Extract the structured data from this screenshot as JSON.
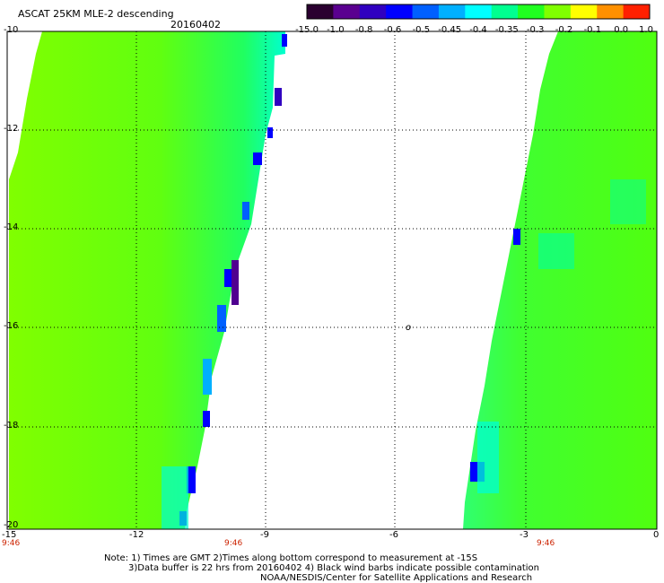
{
  "header": {
    "title": "ASCAT 25KM MLE-2 descending",
    "date": "20160402"
  },
  "colorbar": {
    "labels": [
      "-15.0",
      "-1.0",
      "-0.8",
      "-0.6",
      "-0.5",
      "-0.45",
      "-0.4",
      "-0.35",
      "-0.3",
      "-0.2",
      "-0.1",
      "0.0",
      "1.0"
    ],
    "colors": [
      "#2a0030",
      "#5a0090",
      "#3000c0",
      "#0000ff",
      "#0060ff",
      "#00b0ff",
      "#00ffff",
      "#00ff90",
      "#20ff20",
      "#80ff00",
      "#ffff00",
      "#ff9000",
      "#ff2000"
    ]
  },
  "axes": {
    "x_ticks": [
      "-15",
      "-12",
      "-9",
      "-6",
      "-3",
      "0"
    ],
    "y_ticks": [
      "-10",
      "-12",
      "-14",
      "-16",
      "-18",
      "-20"
    ]
  },
  "times": [
    "9:46",
    "9:46",
    "9:46"
  ],
  "symbol": "o",
  "notes": [
    "Note: 1) Times are GMT 2)Times along bottom correspond to measurement at -15S",
    "3)Data buffer is 22 hrs from 20160402 4) Black wind barbs indicate possible contamination",
    "NOAA/NESDIS/Center for Satellite Applications and Research"
  ],
  "colors": {
    "green": "#60ff10",
    "lime": "#90ff00",
    "cyan": "#00ffd0",
    "blue": "#0000ff",
    "purple": "#500090",
    "timeRed": "#cc2200"
  }
}
